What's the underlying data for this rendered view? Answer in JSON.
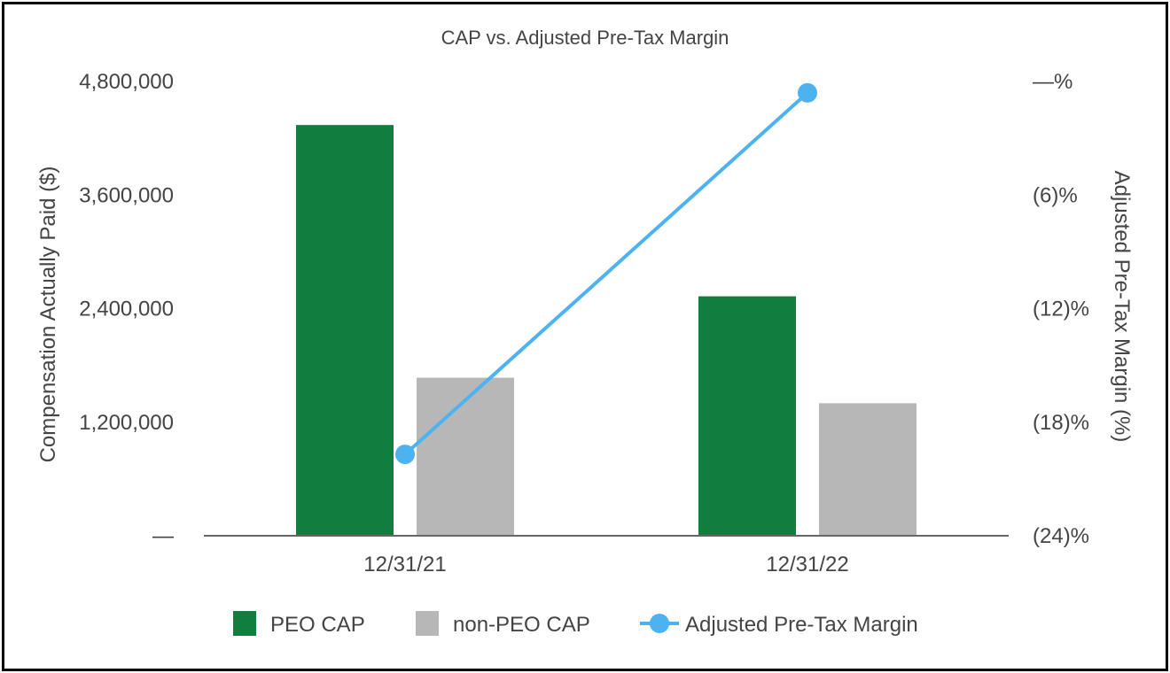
{
  "chart_data": {
    "type": "bar",
    "title": "CAP vs. Adjusted Pre-Tax Margin",
    "categories": [
      "12/31/21",
      "12/31/22"
    ],
    "ylabel": "Compensation Actually Paid ($)",
    "y2label": "Adjusted Pre-Tax Margin (%)",
    "ylim": [
      0,
      4800000
    ],
    "y2lim": [
      -24,
      0
    ],
    "y_ticks": [
      0,
      1200000,
      2400000,
      3600000,
      4800000
    ],
    "y_tick_labels": [
      "—",
      "1,200,000",
      "2,400,000",
      "3,600,000",
      "4,800,000"
    ],
    "y2_ticks": [
      -24,
      -18,
      -12,
      -6,
      0
    ],
    "y2_tick_labels": [
      "(24)%",
      "(18)%",
      "(12)%",
      "(6)%",
      "—%"
    ],
    "series": [
      {
        "name": "PEO CAP",
        "kind": "bar",
        "axis": "left",
        "color": "#107e3e",
        "values": [
          4340000,
          2530000
        ]
      },
      {
        "name": "non-PEO CAP",
        "kind": "bar",
        "axis": "left",
        "color": "#b7b7b7",
        "values": [
          1670000,
          1400000
        ]
      },
      {
        "name": "Adjusted Pre-Tax Margin",
        "kind": "line",
        "axis": "right",
        "color": "#4cb3f0",
        "values": [
          -19.7,
          -0.6
        ]
      }
    ],
    "grid": false,
    "legend": "bottom"
  }
}
